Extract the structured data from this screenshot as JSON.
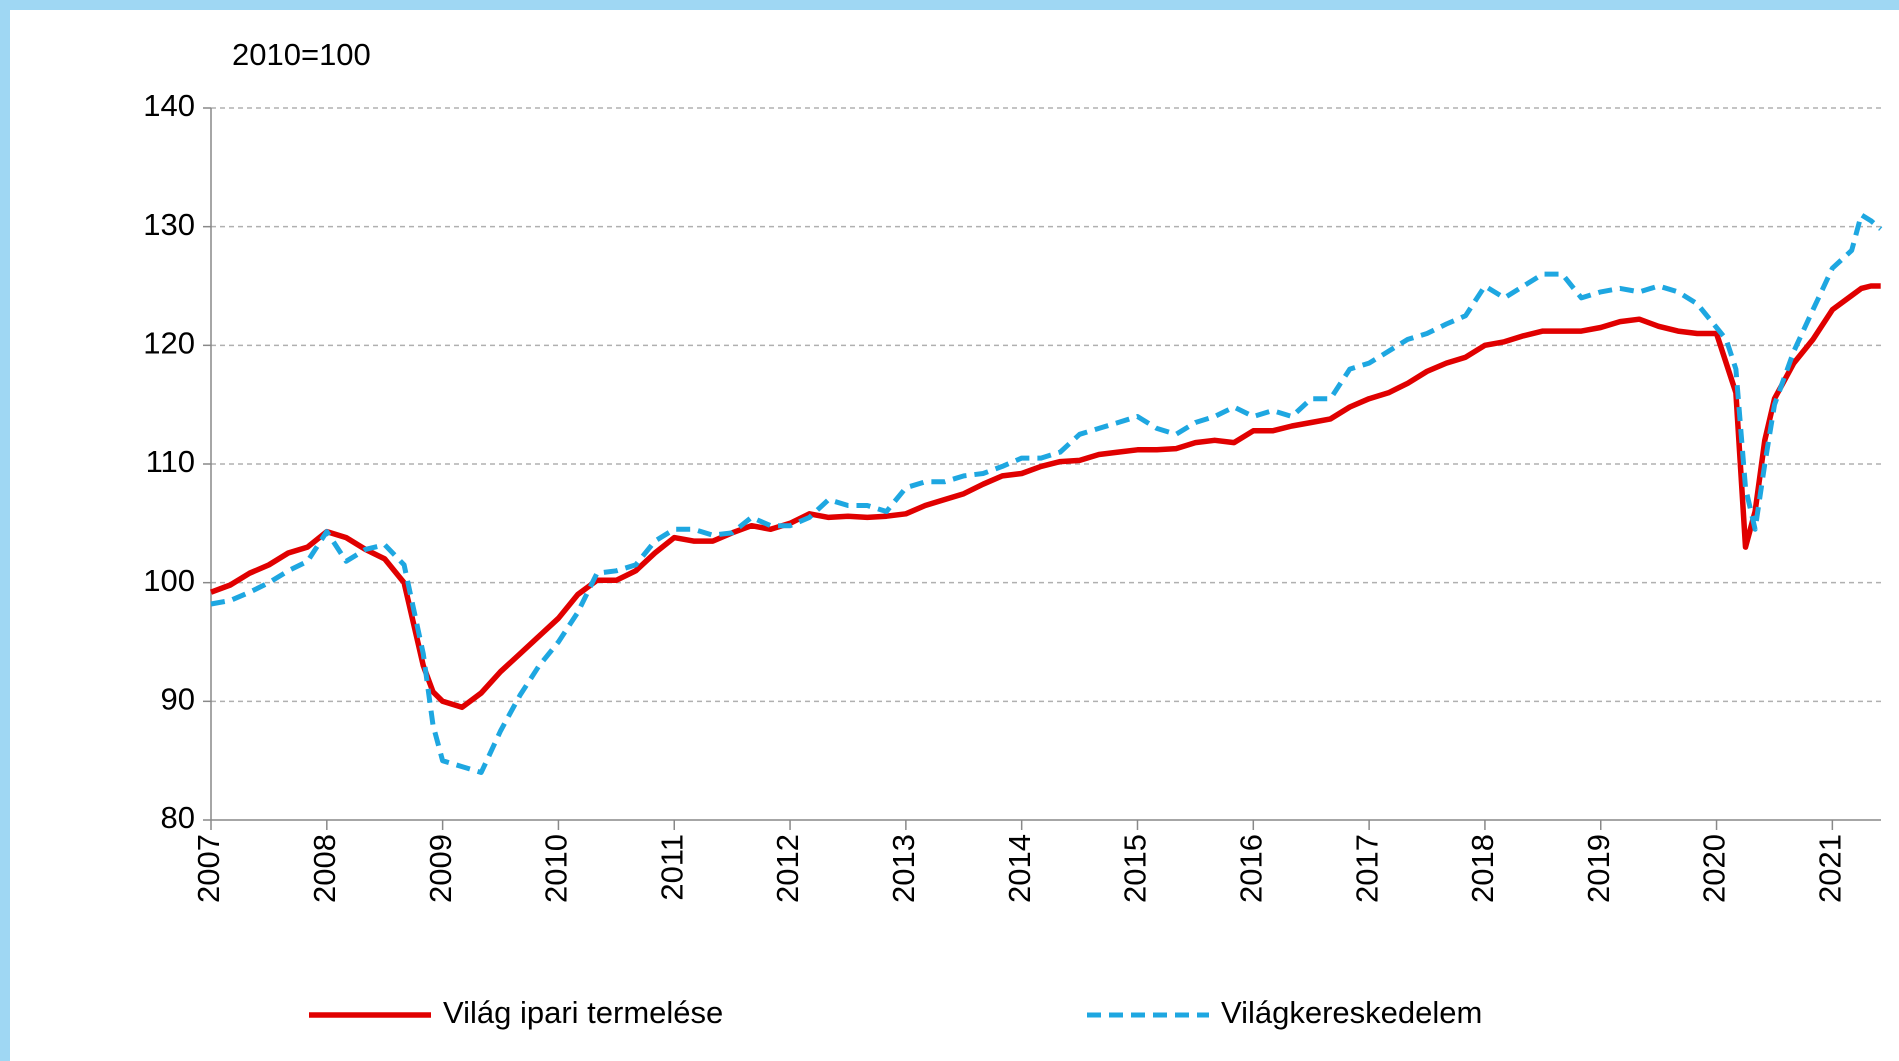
{
  "chart_data": {
    "type": "line",
    "y_label": "2010=100",
    "x": [
      2007.0,
      2007.167,
      2007.333,
      2007.5,
      2007.667,
      2007.833,
      2008.0,
      2008.167,
      2008.333,
      2008.5,
      2008.667,
      2008.833,
      2008.917,
      2009.0,
      2009.167,
      2009.333,
      2009.5,
      2009.667,
      2009.833,
      2010.0,
      2010.167,
      2010.333,
      2010.5,
      2010.667,
      2010.833,
      2011.0,
      2011.167,
      2011.333,
      2011.5,
      2011.667,
      2011.833,
      2012.0,
      2012.167,
      2012.333,
      2012.5,
      2012.667,
      2012.833,
      2013.0,
      2013.167,
      2013.333,
      2013.5,
      2013.667,
      2013.833,
      2014.0,
      2014.167,
      2014.333,
      2014.5,
      2014.667,
      2014.833,
      2015.0,
      2015.167,
      2015.333,
      2015.5,
      2015.667,
      2015.833,
      2016.0,
      2016.167,
      2016.333,
      2016.5,
      2016.667,
      2016.833,
      2017.0,
      2017.167,
      2017.333,
      2017.5,
      2017.667,
      2017.833,
      2018.0,
      2018.167,
      2018.333,
      2018.5,
      2018.667,
      2018.833,
      2019.0,
      2019.167,
      2019.333,
      2019.5,
      2019.667,
      2019.833,
      2020.0,
      2020.083,
      2020.167,
      2020.25,
      2020.333,
      2020.417,
      2020.5,
      2020.667,
      2020.833,
      2021.0,
      2021.167,
      2021.25,
      2021.333,
      2021.417
    ],
    "series": [
      {
        "name": "Világ ipari termelése",
        "color": "#e00000",
        "dash": false,
        "values": [
          99.2,
          99.8,
          100.8,
          101.5,
          102.5,
          103.0,
          104.3,
          103.8,
          102.8,
          102.0,
          100.0,
          93,
          90.8,
          90.0,
          89.5,
          90.7,
          92.5,
          94,
          95.5,
          97,
          99,
          100.2,
          100.2,
          101,
          102.5,
          103.8,
          103.5,
          103.5,
          104.2,
          104.8,
          104.5,
          105,
          105.8,
          105.5,
          105.6,
          105.5,
          105.6,
          105.8,
          106.5,
          107,
          107.5,
          108.3,
          109,
          109.2,
          109.8,
          110.2,
          110.3,
          110.8,
          111,
          111.2,
          111.2,
          111.3,
          111.8,
          112,
          111.8,
          112.8,
          112.8,
          113.2,
          113.5,
          113.8,
          114.8,
          115.5,
          116,
          116.8,
          117.8,
          118.5,
          119,
          120,
          120.3,
          120.8,
          121.2,
          121.2,
          121.2,
          121.5,
          122,
          122.2,
          121.6,
          121.2,
          121.0,
          121.0,
          118.5,
          116,
          103,
          106,
          112,
          115.5,
          118.5,
          120.5,
          123,
          124.2,
          124.8,
          125,
          125
        ]
      },
      {
        "name": "Világkereskedelem",
        "color": "#1ea7e1",
        "dash": true,
        "values": [
          98.2,
          98.5,
          99.2,
          100,
          101,
          101.8,
          104.3,
          101.8,
          102.8,
          103.2,
          101.5,
          94,
          88,
          85,
          84.5,
          84,
          87.5,
          90.5,
          93,
          95,
          97.5,
          100.8,
          101,
          101.5,
          103.5,
          104.5,
          104.5,
          104,
          104.2,
          105.5,
          104.8,
          104.8,
          105.5,
          107,
          106.5,
          106.5,
          106,
          108,
          108.5,
          108.5,
          109,
          109.2,
          109.8,
          110.5,
          110.5,
          111,
          112.5,
          113,
          113.5,
          114,
          113,
          112.5,
          113.5,
          114,
          114.8,
          114,
          114.5,
          114,
          115.5,
          115.5,
          118,
          118.5,
          119.5,
          120.5,
          121,
          121.8,
          122.5,
          125,
          124,
          125,
          126,
          126,
          124,
          124.5,
          124.8,
          124.5,
          125,
          124.5,
          123.5,
          121.5,
          120.5,
          118,
          108,
          104.5,
          110,
          115,
          119.5,
          123,
          126.5,
          128,
          131,
          130.5,
          129.8
        ]
      }
    ],
    "xlim": [
      2007,
      2021.42
    ],
    "xticks": [
      2007,
      2008,
      2009,
      2010,
      2011,
      2012,
      2013,
      2014,
      2015,
      2016,
      2017,
      2018,
      2019,
      2020,
      2021
    ],
    "ylim": [
      80,
      140
    ],
    "yticks": [
      80,
      90,
      100,
      110,
      120,
      130,
      140
    ],
    "grid": true,
    "legend": "bottom"
  }
}
